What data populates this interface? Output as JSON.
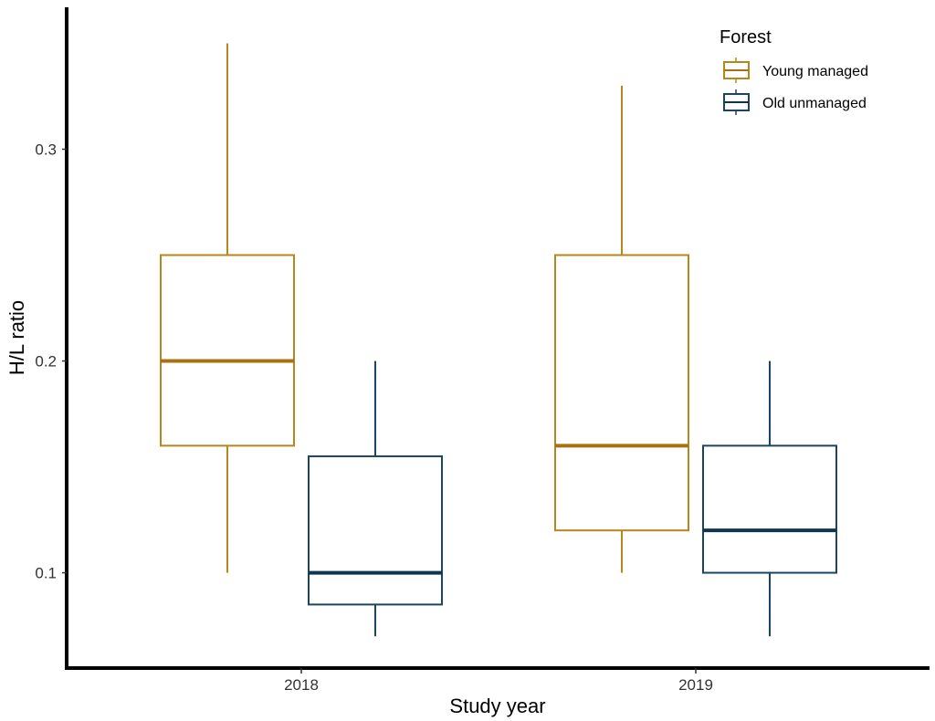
{
  "chart_data": {
    "type": "boxplot",
    "title": "",
    "xlabel": "Study year",
    "ylabel": "H/L ratio",
    "categories": [
      "2018",
      "2019"
    ],
    "ylim": [
      0.055,
      0.367
    ],
    "yticks": [
      0.1,
      0.2,
      0.3
    ],
    "ytick_labels": [
      "0.1",
      "0.2",
      "0.3"
    ],
    "grid": false,
    "legend": {
      "title": "Forest",
      "placement": "top-right",
      "entries": [
        "Young managed",
        "Old unmanaged"
      ]
    },
    "series": [
      {
        "name": "Young managed",
        "color": "#B8861B",
        "median_color": "#A8700F",
        "boxes": [
          {
            "category": "2018",
            "min": 0.1,
            "q1": 0.16,
            "median": 0.2,
            "q3": 0.25,
            "max": 0.35
          },
          {
            "category": "2019",
            "min": 0.1,
            "q1": 0.12,
            "median": 0.16,
            "q3": 0.25,
            "max": 0.33
          }
        ]
      },
      {
        "name": "Old unmanaged",
        "color": "#1B4560",
        "median_color": "#0F3650",
        "boxes": [
          {
            "category": "2018",
            "min": 0.07,
            "q1": 0.085,
            "median": 0.1,
            "q3": 0.155,
            "max": 0.2
          },
          {
            "category": "2019",
            "min": 0.07,
            "q1": 0.1,
            "median": 0.12,
            "q3": 0.16,
            "max": 0.2
          }
        ]
      }
    ]
  }
}
